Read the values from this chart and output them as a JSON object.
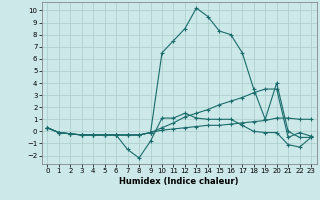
{
  "x": [
    0,
    1,
    2,
    3,
    4,
    5,
    6,
    7,
    8,
    9,
    10,
    11,
    12,
    13,
    14,
    15,
    16,
    17,
    18,
    19,
    20,
    21,
    22,
    23
  ],
  "line4": [
    0.3,
    -0.1,
    -0.2,
    -0.3,
    -0.3,
    -0.3,
    -0.3,
    -0.3,
    -0.3,
    -0.1,
    6.5,
    7.5,
    8.5,
    10.2,
    9.5,
    8.3,
    8.0,
    6.5,
    3.5,
    1.0,
    4.0,
    0.0,
    -0.5,
    -0.5
  ],
  "line3": [
    0.3,
    -0.1,
    -0.2,
    -0.3,
    -0.3,
    -0.3,
    -0.3,
    -0.3,
    -0.3,
    -0.1,
    0.3,
    0.7,
    1.2,
    1.5,
    1.8,
    2.2,
    2.5,
    2.8,
    3.2,
    3.5,
    3.5,
    -0.5,
    -0.1,
    -0.4
  ],
  "line2": [
    0.3,
    -0.1,
    -0.2,
    -0.3,
    -0.3,
    -0.3,
    -0.3,
    -0.3,
    -0.3,
    -0.1,
    0.1,
    0.2,
    0.3,
    0.4,
    0.5,
    0.5,
    0.6,
    0.7,
    0.8,
    0.9,
    1.1,
    1.1,
    1.0,
    1.0
  ],
  "line1": [
    0.3,
    -0.1,
    -0.2,
    -0.3,
    -0.3,
    -0.3,
    -0.3,
    -1.5,
    -2.2,
    -0.8,
    1.1,
    1.1,
    1.5,
    1.1,
    1.0,
    1.0,
    1.0,
    0.5,
    0.0,
    -0.1,
    -0.1,
    -1.1,
    -1.3,
    -0.5
  ],
  "bg_color": "#cce8e8",
  "grid_color": "#aacccc",
  "line_color": "#1a6b6b",
  "xlabel": "Humidex (Indice chaleur)",
  "ylim": [
    -2.7,
    10.7
  ],
  "xlim": [
    -0.5,
    23.5
  ],
  "yticks": [
    -2,
    -1,
    0,
    1,
    2,
    3,
    4,
    5,
    6,
    7,
    8,
    9,
    10
  ],
  "xticks": [
    0,
    1,
    2,
    3,
    4,
    5,
    6,
    7,
    8,
    9,
    10,
    11,
    12,
    13,
    14,
    15,
    16,
    17,
    18,
    19,
    20,
    21,
    22,
    23
  ]
}
